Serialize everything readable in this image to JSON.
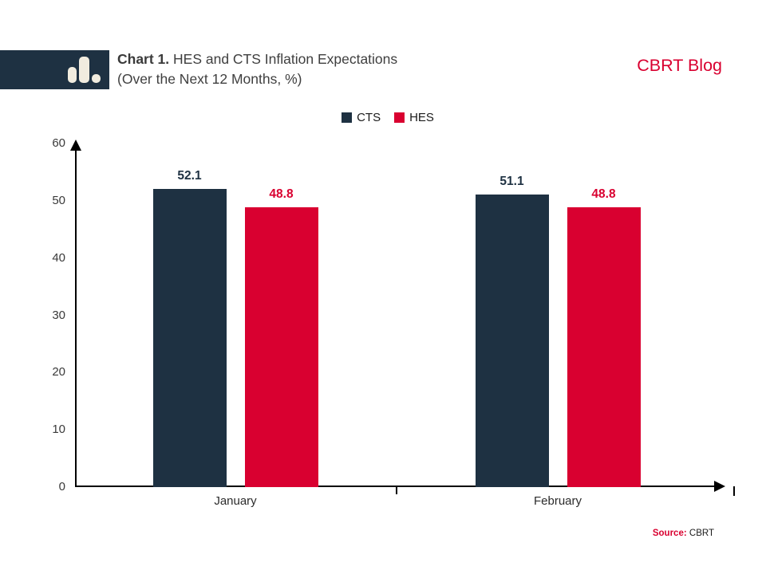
{
  "header": {
    "title_prefix": "Chart 1.",
    "title_rest": " HES and CTS Inflation Expectations",
    "title_line2": "(Over the Next 12 Months, %)",
    "brand": "CBRT Blog",
    "logo_icon": "bar-chart-logo"
  },
  "colors": {
    "navy": "#1e3142",
    "red": "#d90030",
    "axis": "#000000",
    "title_text": "#3f3f3f",
    "logo_glyph": "#f1ecdf"
  },
  "chart_data": {
    "type": "bar",
    "categories": [
      "January",
      "February"
    ],
    "series": [
      {
        "name": "CTS",
        "color": "#1e3142",
        "values": [
          52.1,
          51.1
        ]
      },
      {
        "name": "HES",
        "color": "#d90030",
        "values": [
          48.8,
          48.8
        ]
      }
    ],
    "title": "Chart 1. HES and CTS Inflation Expectations (Over the Next 12 Months, %)",
    "xlabel": "",
    "ylabel": "",
    "ylim": [
      0,
      60
    ],
    "yticks": [
      0,
      10,
      20,
      30,
      40,
      50,
      60
    ],
    "grid": false,
    "legend_position": "top-center",
    "value_labels": [
      [
        "52.1",
        "51.1"
      ],
      [
        "48.8",
        "48.8"
      ]
    ]
  },
  "footer": {
    "source_label": "Source:",
    "source_value": "CBRT"
  }
}
